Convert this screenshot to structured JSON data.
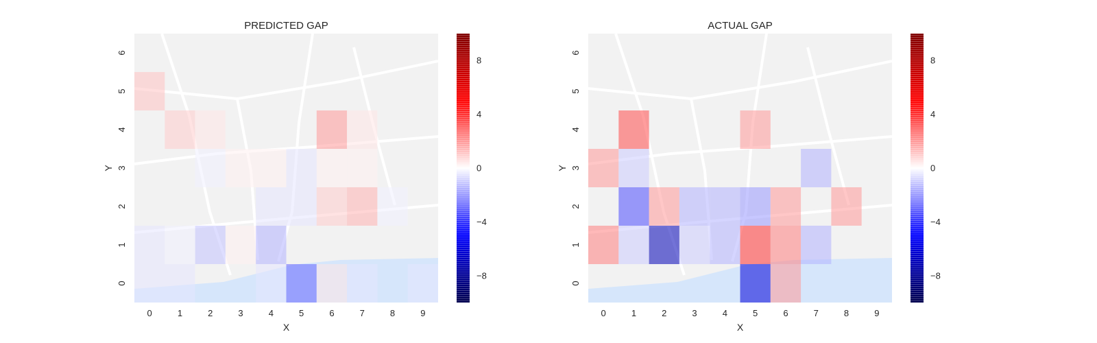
{
  "chart_data": [
    {
      "type": "heatmap",
      "title": "PREDICTED GAP",
      "xlabel": "X",
      "ylabel": "Y",
      "x_ticks": [
        "0",
        "1",
        "2",
        "3",
        "4",
        "5",
        "6",
        "7",
        "8",
        "9"
      ],
      "y_ticks": [
        "0",
        "1",
        "2",
        "3",
        "4",
        "5",
        "6"
      ],
      "colormap": "seismic",
      "vmin": -10,
      "vmax": 10,
      "colorbar_ticks": [
        "8",
        "4",
        "0",
        "−4",
        "−8"
      ],
      "colorbar_tick_values": [
        8,
        4,
        0,
        -4,
        -8
      ],
      "background": "street map",
      "grid": [
        [
          -0.5,
          -0.5,
          0,
          0,
          -0.5,
          -3.0,
          0.5,
          -0.5,
          0,
          -0.5
        ],
        [
          -0.5,
          -0.3,
          -1.2,
          0.3,
          -1.5,
          0,
          0,
          0,
          0,
          0
        ],
        [
          0,
          0,
          0,
          0,
          -0.5,
          -0.5,
          1.0,
          1.5,
          -0.3,
          0
        ],
        [
          0,
          0,
          -0.3,
          0.3,
          0.3,
          -0.5,
          0.3,
          0.3,
          0,
          0
        ],
        [
          0,
          1.0,
          0.5,
          0,
          0,
          0,
          2.0,
          0.5,
          0,
          0
        ],
        [
          1.2,
          0,
          0,
          0,
          0,
          0,
          0,
          0,
          0,
          0
        ],
        [
          0,
          0,
          0,
          0,
          0,
          0,
          0,
          0,
          0,
          0
        ]
      ]
    },
    {
      "type": "heatmap",
      "title": "ACTUAL GAP",
      "xlabel": "X",
      "ylabel": "Y",
      "x_ticks": [
        "0",
        "1",
        "2",
        "3",
        "4",
        "5",
        "6",
        "7",
        "8",
        "9"
      ],
      "y_ticks": [
        "0",
        "1",
        "2",
        "3",
        "4",
        "5",
        "6"
      ],
      "colormap": "seismic",
      "vmin": -10,
      "vmax": 10,
      "colorbar_ticks": [
        "8",
        "4",
        "0",
        "−4",
        "−8"
      ],
      "colorbar_tick_values": [
        8,
        4,
        0,
        -4,
        -8
      ],
      "background": "street map",
      "grid": [
        [
          0,
          0,
          0,
          0,
          0,
          -6.0,
          2.0,
          0,
          0,
          0
        ],
        [
          2.5,
          -1.0,
          -7.0,
          -1.0,
          -1.5,
          4.0,
          2.5,
          -1.5,
          0,
          0
        ],
        [
          0,
          -3.5,
          2.0,
          -1.5,
          -1.5,
          -2.0,
          2.0,
          0,
          2.0,
          0
        ],
        [
          2.0,
          -1.0,
          0,
          0,
          0,
          0,
          0,
          -1.5,
          0,
          0
        ],
        [
          0,
          3.5,
          0,
          0,
          0,
          2.0,
          0,
          0,
          0,
          0
        ],
        [
          0,
          0,
          0,
          0,
          0,
          0,
          0,
          0,
          0,
          0
        ],
        [
          0,
          0,
          0,
          0,
          0,
          0,
          0,
          0,
          0,
          0
        ]
      ]
    }
  ]
}
